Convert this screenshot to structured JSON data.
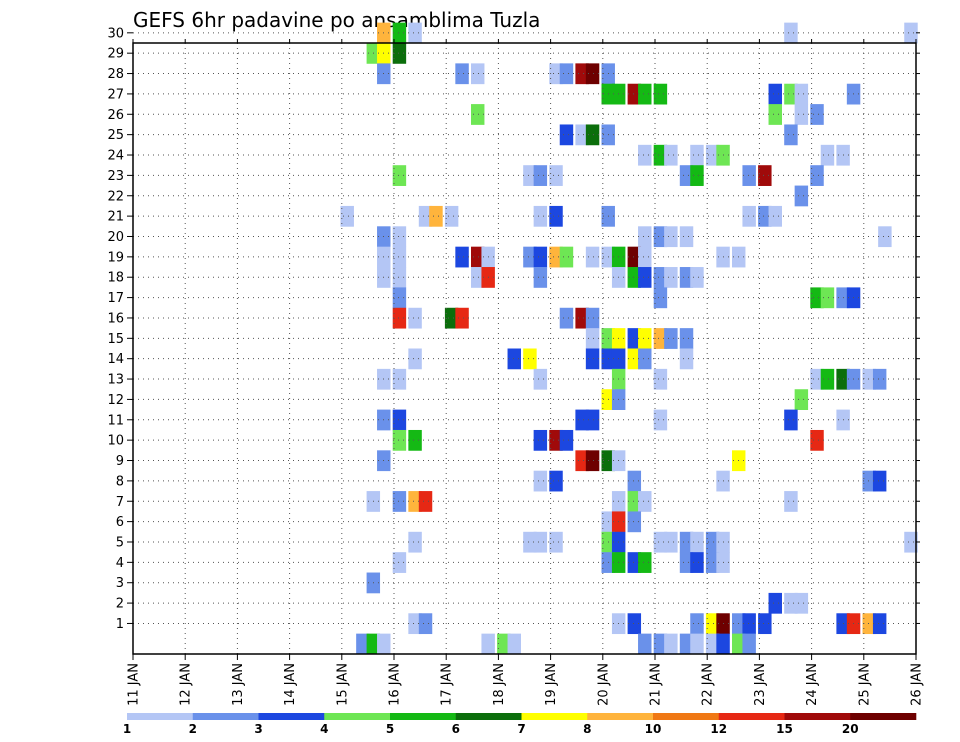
{
  "chart_data": {
    "type": "heatmap",
    "title": "GEFS 6hr padavine po ansamblima Tuzla",
    "xlabel": "",
    "ylabel": "",
    "x_ticks": [
      "11 JAN",
      "12 JAN",
      "13 JAN",
      "14 JAN",
      "15 JAN",
      "16 JAN",
      "17 JAN",
      "18 JAN",
      "19 JAN",
      "20 JAN",
      "21 JAN",
      "22 JAN",
      "23 JAN",
      "24 JAN",
      "25 JAN",
      "26 JAN"
    ],
    "y_ticks": [
      "1",
      "2",
      "3",
      "4",
      "5",
      "6",
      "7",
      "8",
      "9",
      "10",
      "11",
      "12",
      "13",
      "14",
      "15",
      "16",
      "17",
      "18",
      "19",
      "20",
      "21",
      "22",
      "23",
      "24",
      "25",
      "26",
      "27",
      "28",
      "29",
      "30"
    ],
    "ylim": [
      0,
      30
    ],
    "grid": true,
    "legend": "bottom",
    "colorbar": {
      "labels": [
        "1",
        "2",
        "3",
        "4",
        "5",
        "6",
        "7",
        "8",
        "10",
        "12",
        "15",
        "20"
      ],
      "colors": [
        "#b4c6f5",
        "#6a91ea",
        "#1c47e0",
        "#6ee654",
        "#14b914",
        "#0b6e0b",
        "#ffff00",
        "#ffb43c",
        "#f07814",
        "#e62814",
        "#a00a0a",
        "#6e0000"
      ]
    },
    "cell_value_note": "",
    "cells": [
      {
        "member": 30,
        "day": 15.8,
        "v": 8
      },
      {
        "member": 30,
        "day": 16.1,
        "v": 5
      },
      {
        "member": 30,
        "day": 16.4,
        "v": 1
      },
      {
        "member": 30,
        "day": 23.6,
        "v": 1
      },
      {
        "member": 30,
        "day": 25.9,
        "v": 1
      },
      {
        "member": 29,
        "day": 15.6,
        "v": 4
      },
      {
        "member": 29,
        "day": 15.8,
        "v": 7
      },
      {
        "member": 29,
        "day": 16.1,
        "v": 6
      },
      {
        "member": 28,
        "day": 15.8,
        "v": 2
      },
      {
        "member": 28,
        "day": 17.3,
        "v": 2
      },
      {
        "member": 28,
        "day": 17.6,
        "v": 1
      },
      {
        "member": 28,
        "day": 19.1,
        "v": 1
      },
      {
        "member": 28,
        "day": 19.3,
        "v": 2
      },
      {
        "member": 28,
        "day": 19.6,
        "v": 11
      },
      {
        "member": 28,
        "day": 19.8,
        "v": 12
      },
      {
        "member": 28,
        "day": 20.1,
        "v": 2
      },
      {
        "member": 27,
        "day": 20.1,
        "v": 5
      },
      {
        "member": 27,
        "day": 20.3,
        "v": 5
      },
      {
        "member": 27,
        "day": 20.6,
        "v": 11
      },
      {
        "member": 27,
        "day": 20.8,
        "v": 5
      },
      {
        "member": 27,
        "day": 21.1,
        "v": 5
      },
      {
        "member": 27,
        "day": 23.3,
        "v": 3
      },
      {
        "member": 27,
        "day": 23.6,
        "v": 4
      },
      {
        "member": 27,
        "day": 23.8,
        "v": 1
      },
      {
        "member": 27,
        "day": 24.8,
        "v": 2
      },
      {
        "member": 26,
        "day": 17.6,
        "v": 4
      },
      {
        "member": 26,
        "day": 23.3,
        "v": 4
      },
      {
        "member": 26,
        "day": 23.8,
        "v": 1
      },
      {
        "member": 26,
        "day": 24.1,
        "v": 2
      },
      {
        "member": 25,
        "day": 19.3,
        "v": 3
      },
      {
        "member": 25,
        "day": 19.6,
        "v": 1
      },
      {
        "member": 25,
        "day": 19.8,
        "v": 6
      },
      {
        "member": 25,
        "day": 20.1,
        "v": 2
      },
      {
        "member": 25,
        "day": 23.6,
        "v": 2
      },
      {
        "member": 24,
        "day": 20.8,
        "v": 1
      },
      {
        "member": 24,
        "day": 21.1,
        "v": 5
      },
      {
        "member": 24,
        "day": 21.3,
        "v": 1
      },
      {
        "member": 24,
        "day": 21.8,
        "v": 1
      },
      {
        "member": 24,
        "day": 22.1,
        "v": 1
      },
      {
        "member": 24,
        "day": 22.3,
        "v": 4
      },
      {
        "member": 24,
        "day": 24.3,
        "v": 1
      },
      {
        "member": 24,
        "day": 24.6,
        "v": 1
      },
      {
        "member": 23,
        "day": 16.1,
        "v": 4
      },
      {
        "member": 23,
        "day": 18.6,
        "v": 1
      },
      {
        "member": 23,
        "day": 18.8,
        "v": 2
      },
      {
        "member": 23,
        "day": 19.1,
        "v": 1
      },
      {
        "member": 23,
        "day": 21.6,
        "v": 2
      },
      {
        "member": 23,
        "day": 21.8,
        "v": 5
      },
      {
        "member": 23,
        "day": 22.8,
        "v": 2
      },
      {
        "member": 23,
        "day": 23.1,
        "v": 11
      },
      {
        "member": 23,
        "day": 24.1,
        "v": 2
      },
      {
        "member": 22,
        "day": 23.8,
        "v": 2
      },
      {
        "member": 21,
        "day": 15.1,
        "v": 1
      },
      {
        "member": 21,
        "day": 16.6,
        "v": 1
      },
      {
        "member": 21,
        "day": 16.8,
        "v": 8
      },
      {
        "member": 21,
        "day": 17.1,
        "v": 1
      },
      {
        "member": 21,
        "day": 18.8,
        "v": 1
      },
      {
        "member": 21,
        "day": 19.1,
        "v": 3
      },
      {
        "member": 21,
        "day": 20.1,
        "v": 2
      },
      {
        "member": 21,
        "day": 22.8,
        "v": 1
      },
      {
        "member": 21,
        "day": 23.1,
        "v": 2
      },
      {
        "member": 21,
        "day": 23.3,
        "v": 1
      },
      {
        "member": 20,
        "day": 15.8,
        "v": 2
      },
      {
        "member": 20,
        "day": 16.1,
        "v": 1
      },
      {
        "member": 20,
        "day": 20.8,
        "v": 1
      },
      {
        "member": 20,
        "day": 21.1,
        "v": 2
      },
      {
        "member": 20,
        "day": 21.3,
        "v": 1
      },
      {
        "member": 20,
        "day": 21.6,
        "v": 1
      },
      {
        "member": 20,
        "day": 25.4,
        "v": 1
      },
      {
        "member": 19,
        "day": 15.8,
        "v": 1
      },
      {
        "member": 19,
        "day": 16.1,
        "v": 1
      },
      {
        "member": 19,
        "day": 17.3,
        "v": 3
      },
      {
        "member": 19,
        "day": 17.6,
        "v": 11
      },
      {
        "member": 19,
        "day": 17.8,
        "v": 1
      },
      {
        "member": 19,
        "day": 18.6,
        "v": 2
      },
      {
        "member": 19,
        "day": 18.8,
        "v": 3
      },
      {
        "member": 19,
        "day": 19.1,
        "v": 8
      },
      {
        "member": 19,
        "day": 19.3,
        "v": 4
      },
      {
        "member": 19,
        "day": 19.8,
        "v": 1
      },
      {
        "member": 19,
        "day": 20.1,
        "v": 1
      },
      {
        "member": 19,
        "day": 20.3,
        "v": 5
      },
      {
        "member": 19,
        "day": 20.6,
        "v": 12
      },
      {
        "member": 19,
        "day": 20.8,
        "v": 1
      },
      {
        "member": 19,
        "day": 22.3,
        "v": 1
      },
      {
        "member": 19,
        "day": 22.6,
        "v": 1
      },
      {
        "member": 18,
        "day": 15.8,
        "v": 1
      },
      {
        "member": 18,
        "day": 16.1,
        "v": 1
      },
      {
        "member": 18,
        "day": 17.6,
        "v": 1
      },
      {
        "member": 18,
        "day": 17.8,
        "v": 10
      },
      {
        "member": 18,
        "day": 18.8,
        "v": 2
      },
      {
        "member": 18,
        "day": 20.3,
        "v": 1
      },
      {
        "member": 18,
        "day": 20.6,
        "v": 5
      },
      {
        "member": 18,
        "day": 20.8,
        "v": 3
      },
      {
        "member": 18,
        "day": 21.1,
        "v": 2
      },
      {
        "member": 18,
        "day": 21.3,
        "v": 1
      },
      {
        "member": 18,
        "day": 21.6,
        "v": 2
      },
      {
        "member": 18,
        "day": 21.8,
        "v": 1
      },
      {
        "member": 17,
        "day": 16.1,
        "v": 2
      },
      {
        "member": 17,
        "day": 21.1,
        "v": 2
      },
      {
        "member": 17,
        "day": 24.1,
        "v": 5
      },
      {
        "member": 17,
        "day": 24.3,
        "v": 4
      },
      {
        "member": 17,
        "day": 24.6,
        "v": 2
      },
      {
        "member": 17,
        "day": 24.8,
        "v": 3
      },
      {
        "member": 16,
        "day": 16.1,
        "v": 10
      },
      {
        "member": 16,
        "day": 16.4,
        "v": 1
      },
      {
        "member": 16,
        "day": 17.1,
        "v": 6
      },
      {
        "member": 16,
        "day": 17.3,
        "v": 10
      },
      {
        "member": 16,
        "day": 19.3,
        "v": 2
      },
      {
        "member": 16,
        "day": 19.6,
        "v": 11
      },
      {
        "member": 16,
        "day": 19.8,
        "v": 2
      },
      {
        "member": 15,
        "day": 19.8,
        "v": 1
      },
      {
        "member": 15,
        "day": 20.1,
        "v": 4
      },
      {
        "member": 15,
        "day": 20.3,
        "v": 7
      },
      {
        "member": 15,
        "day": 20.6,
        "v": 3
      },
      {
        "member": 15,
        "day": 20.8,
        "v": 7
      },
      {
        "member": 15,
        "day": 21.1,
        "v": 8
      },
      {
        "member": 15,
        "day": 21.3,
        "v": 2
      },
      {
        "member": 15,
        "day": 21.6,
        "v": 2
      },
      {
        "member": 14,
        "day": 16.4,
        "v": 1
      },
      {
        "member": 14,
        "day": 18.3,
        "v": 3
      },
      {
        "member": 14,
        "day": 18.6,
        "v": 7
      },
      {
        "member": 14,
        "day": 19.8,
        "v": 3
      },
      {
        "member": 14,
        "day": 20.1,
        "v": 3
      },
      {
        "member": 14,
        "day": 20.3,
        "v": 3
      },
      {
        "member": 14,
        "day": 20.6,
        "v": 7
      },
      {
        "member": 14,
        "day": 20.8,
        "v": 2
      },
      {
        "member": 14,
        "day": 21.6,
        "v": 1
      },
      {
        "member": 13,
        "day": 15.8,
        "v": 1
      },
      {
        "member": 13,
        "day": 16.1,
        "v": 1
      },
      {
        "member": 13,
        "day": 18.8,
        "v": 1
      },
      {
        "member": 13,
        "day": 20.3,
        "v": 4
      },
      {
        "member": 13,
        "day": 21.1,
        "v": 1
      },
      {
        "member": 13,
        "day": 24.1,
        "v": 1
      },
      {
        "member": 13,
        "day": 24.3,
        "v": 5
      },
      {
        "member": 13,
        "day": 24.6,
        "v": 6
      },
      {
        "member": 13,
        "day": 24.8,
        "v": 2
      },
      {
        "member": 13,
        "day": 25.1,
        "v": 1
      },
      {
        "member": 13,
        "day": 25.3,
        "v": 2
      },
      {
        "member": 12,
        "day": 20.1,
        "v": 7
      },
      {
        "member": 12,
        "day": 20.3,
        "v": 2
      },
      {
        "member": 12,
        "day": 23.8,
        "v": 4
      },
      {
        "member": 11,
        "day": 15.8,
        "v": 2
      },
      {
        "member": 11,
        "day": 16.1,
        "v": 3
      },
      {
        "member": 11,
        "day": 19.6,
        "v": 3
      },
      {
        "member": 11,
        "day": 19.8,
        "v": 3
      },
      {
        "member": 11,
        "day": 21.1,
        "v": 1
      },
      {
        "member": 11,
        "day": 23.6,
        "v": 3
      },
      {
        "member": 11,
        "day": 24.6,
        "v": 1
      },
      {
        "member": 10,
        "day": 16.1,
        "v": 4
      },
      {
        "member": 10,
        "day": 16.4,
        "v": 5
      },
      {
        "member": 10,
        "day": 18.8,
        "v": 3
      },
      {
        "member": 10,
        "day": 19.1,
        "v": 11
      },
      {
        "member": 10,
        "day": 19.3,
        "v": 3
      },
      {
        "member": 10,
        "day": 24.1,
        "v": 10
      },
      {
        "member": 9,
        "day": 15.8,
        "v": 2
      },
      {
        "member": 9,
        "day": 19.6,
        "v": 10
      },
      {
        "member": 9,
        "day": 19.8,
        "v": 12
      },
      {
        "member": 9,
        "day": 20.1,
        "v": 6
      },
      {
        "member": 9,
        "day": 20.3,
        "v": 1
      },
      {
        "member": 9,
        "day": 22.6,
        "v": 7
      },
      {
        "member": 8,
        "day": 18.8,
        "v": 1
      },
      {
        "member": 8,
        "day": 19.1,
        "v": 3
      },
      {
        "member": 8,
        "day": 20.6,
        "v": 2
      },
      {
        "member": 8,
        "day": 22.3,
        "v": 1
      },
      {
        "member": 8,
        "day": 25.1,
        "v": 2
      },
      {
        "member": 8,
        "day": 25.3,
        "v": 3
      },
      {
        "member": 7,
        "day": 15.6,
        "v": 1
      },
      {
        "member": 7,
        "day": 16.1,
        "v": 2
      },
      {
        "member": 7,
        "day": 16.4,
        "v": 8
      },
      {
        "member": 7,
        "day": 16.6,
        "v": 10
      },
      {
        "member": 7,
        "day": 20.3,
        "v": 1
      },
      {
        "member": 7,
        "day": 20.6,
        "v": 4
      },
      {
        "member": 7,
        "day": 20.8,
        "v": 1
      },
      {
        "member": 7,
        "day": 23.6,
        "v": 1
      },
      {
        "member": 6,
        "day": 20.1,
        "v": 1
      },
      {
        "member": 6,
        "day": 20.3,
        "v": 10
      },
      {
        "member": 6,
        "day": 20.6,
        "v": 2
      },
      {
        "member": 5,
        "day": 16.4,
        "v": 1
      },
      {
        "member": 5,
        "day": 18.6,
        "v": 1
      },
      {
        "member": 5,
        "day": 18.8,
        "v": 1
      },
      {
        "member": 5,
        "day": 19.1,
        "v": 1
      },
      {
        "member": 5,
        "day": 20.1,
        "v": 4
      },
      {
        "member": 5,
        "day": 20.3,
        "v": 3
      },
      {
        "member": 5,
        "day": 21.1,
        "v": 1
      },
      {
        "member": 5,
        "day": 21.3,
        "v": 1
      },
      {
        "member": 5,
        "day": 21.6,
        "v": 2
      },
      {
        "member": 5,
        "day": 21.8,
        "v": 1
      },
      {
        "member": 5,
        "day": 22.1,
        "v": 2
      },
      {
        "member": 5,
        "day": 22.3,
        "v": 1
      },
      {
        "member": 5,
        "day": 25.9,
        "v": 1
      },
      {
        "member": 4,
        "day": 16.1,
        "v": 1
      },
      {
        "member": 4,
        "day": 20.1,
        "v": 2
      },
      {
        "member": 4,
        "day": 20.3,
        "v": 5
      },
      {
        "member": 4,
        "day": 20.6,
        "v": 3
      },
      {
        "member": 4,
        "day": 20.8,
        "v": 5
      },
      {
        "member": 4,
        "day": 21.6,
        "v": 2
      },
      {
        "member": 4,
        "day": 21.8,
        "v": 3
      },
      {
        "member": 4,
        "day": 22.1,
        "v": 2
      },
      {
        "member": 4,
        "day": 22.3,
        "v": 1
      },
      {
        "member": 3,
        "day": 15.6,
        "v": 2
      },
      {
        "member": 2,
        "day": 23.3,
        "v": 3
      },
      {
        "member": 2,
        "day": 23.6,
        "v": 1
      },
      {
        "member": 2,
        "day": 23.8,
        "v": 1
      },
      {
        "member": 1,
        "day": 16.4,
        "v": 1
      },
      {
        "member": 1,
        "day": 16.6,
        "v": 2
      },
      {
        "member": 1,
        "day": 20.3,
        "v": 1
      },
      {
        "member": 1,
        "day": 20.6,
        "v": 3
      },
      {
        "member": 1,
        "day": 21.8,
        "v": 2
      },
      {
        "member": 1,
        "day": 22.1,
        "v": 7
      },
      {
        "member": 1,
        "day": 22.3,
        "v": 12
      },
      {
        "member": 1,
        "day": 22.6,
        "v": 2
      },
      {
        "member": 1,
        "day": 22.8,
        "v": 3
      },
      {
        "member": 1,
        "day": 23.1,
        "v": 3
      },
      {
        "member": 1,
        "day": 24.6,
        "v": 3
      },
      {
        "member": 1,
        "day": 24.8,
        "v": 10
      },
      {
        "member": 1,
        "day": 25.1,
        "v": 8
      },
      {
        "member": 1,
        "day": 25.3,
        "v": 3
      },
      {
        "member": 0,
        "day": 15.4,
        "v": 2
      },
      {
        "member": 0,
        "day": 15.6,
        "v": 5
      },
      {
        "member": 0,
        "day": 15.8,
        "v": 1
      },
      {
        "member": 0,
        "day": 17.8,
        "v": 1
      },
      {
        "member": 0,
        "day": 18.1,
        "v": 4
      },
      {
        "member": 0,
        "day": 18.3,
        "v": 1
      },
      {
        "member": 0,
        "day": 20.8,
        "v": 2
      },
      {
        "member": 0,
        "day": 21.1,
        "v": 2
      },
      {
        "member": 0,
        "day": 21.3,
        "v": 1
      },
      {
        "member": 0,
        "day": 21.6,
        "v": 2
      },
      {
        "member": 0,
        "day": 21.8,
        "v": 1
      },
      {
        "member": 0,
        "day": 22.1,
        "v": 1
      },
      {
        "member": 0,
        "day": 22.3,
        "v": 3
      },
      {
        "member": 0,
        "day": 22.6,
        "v": 4
      },
      {
        "member": 0,
        "day": 22.8,
        "v": 2
      }
    ]
  }
}
